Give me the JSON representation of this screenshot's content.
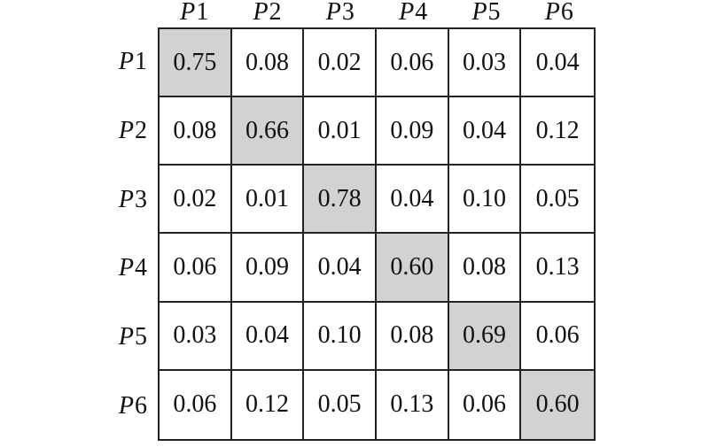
{
  "chart_data": {
    "type": "table",
    "title": "",
    "row_labels": [
      "P1",
      "P2",
      "P3",
      "P4",
      "P5",
      "P6"
    ],
    "col_labels": [
      "P1",
      "P2",
      "P3",
      "P4",
      "P5",
      "P6"
    ],
    "values": [
      [
        0.75,
        0.08,
        0.02,
        0.06,
        0.03,
        0.04
      ],
      [
        0.08,
        0.66,
        0.01,
        0.09,
        0.04,
        0.12
      ],
      [
        0.02,
        0.01,
        0.78,
        0.04,
        0.1,
        0.05
      ],
      [
        0.06,
        0.09,
        0.04,
        0.6,
        0.08,
        0.13
      ],
      [
        0.03,
        0.04,
        0.1,
        0.08,
        0.69,
        0.06
      ],
      [
        0.06,
        0.12,
        0.05,
        0.13,
        0.06,
        0.6
      ]
    ],
    "highlighted_cells": "main-diagonal",
    "layout": {
      "grid": "on",
      "header_style": "italic-serif"
    }
  },
  "display": {
    "col_headers": [
      {
        "p": "P",
        "n": "1"
      },
      {
        "p": "P",
        "n": "2"
      },
      {
        "p": "P",
        "n": "3"
      },
      {
        "p": "P",
        "n": "4"
      },
      {
        "p": "P",
        "n": "5"
      },
      {
        "p": "P",
        "n": "6"
      }
    ],
    "row_headers": [
      {
        "p": "P",
        "n": "1"
      },
      {
        "p": "P",
        "n": "2"
      },
      {
        "p": "P",
        "n": "3"
      },
      {
        "p": "P",
        "n": "4"
      },
      {
        "p": "P",
        "n": "5"
      },
      {
        "p": "P",
        "n": "6"
      }
    ],
    "cells": [
      [
        "0.75",
        "0.08",
        "0.02",
        "0.06",
        "0.03",
        "0.04"
      ],
      [
        "0.08",
        "0.66",
        "0.01",
        "0.09",
        "0.04",
        "0.12"
      ],
      [
        "0.02",
        "0.01",
        "0.78",
        "0.04",
        "0.10",
        "0.05"
      ],
      [
        "0.06",
        "0.09",
        "0.04",
        "0.60",
        "0.08",
        "0.13"
      ],
      [
        "0.03",
        "0.04",
        "0.10",
        "0.08",
        "0.69",
        "0.06"
      ],
      [
        "0.06",
        "0.12",
        "0.05",
        "0.13",
        "0.06",
        "0.60"
      ]
    ]
  },
  "colors": {
    "background": "#ffffff",
    "text": "#111111",
    "grid_line": "#222222",
    "shaded_cell": "#d2d2d2"
  }
}
